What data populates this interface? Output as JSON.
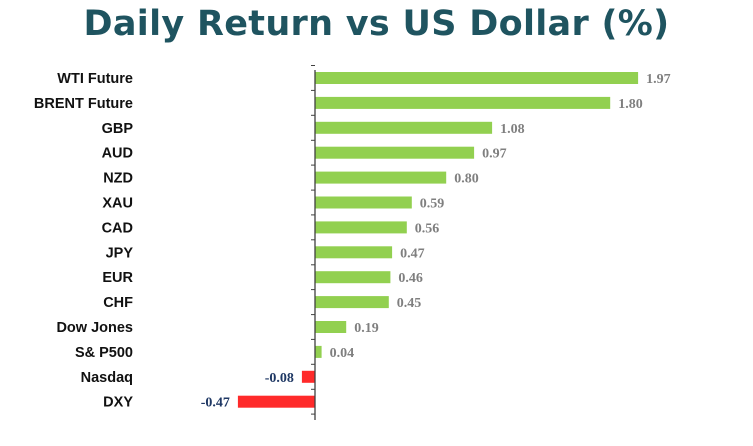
{
  "chart_data": {
    "type": "bar",
    "orientation": "horizontal",
    "title": "Daily Return vs US Dollar (%)",
    "categories": [
      "WTI Future",
      "BRENT Future",
      "GBP",
      "AUD",
      "NZD",
      "XAU",
      "CAD",
      "JPY",
      "EUR",
      "CHF",
      "Dow Jones",
      "S& P500",
      "Nasdaq",
      "DXY"
    ],
    "values": [
      1.97,
      1.8,
      1.08,
      0.97,
      0.8,
      0.59,
      0.56,
      0.47,
      0.46,
      0.45,
      0.19,
      0.04,
      -0.08,
      -0.47
    ],
    "value_labels": [
      "1.97",
      "1.80",
      "1.08",
      "0.97",
      "0.80",
      "0.59",
      "0.56",
      "0.47",
      "0.46",
      "0.45",
      "0.19",
      "0.04",
      "-0.08",
      "-0.47"
    ],
    "xlim": [
      -0.5,
      2.0
    ],
    "grid": false,
    "legend": "none",
    "colors": {
      "positive": "#92d050",
      "negative": "#ff2a2a",
      "positive_label": "#7f7f7f",
      "negative_label": "#1f3864",
      "title": "#1f5460",
      "axis": "#404040"
    }
  }
}
